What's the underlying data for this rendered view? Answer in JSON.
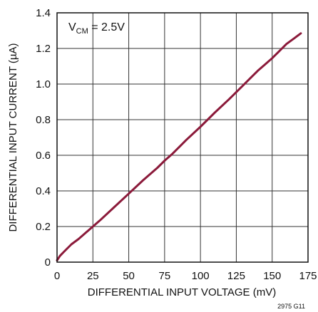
{
  "chart_data": {
    "type": "line",
    "title": "",
    "xlabel": "DIFFERENTIAL INPUT VOLTAGE (mV)",
    "ylabel": "DIFFERENTIAL INPUT CURRENT (µA)",
    "xlim": [
      0,
      175
    ],
    "ylim": [
      0,
      1.4
    ],
    "x_ticks": [
      0,
      25,
      50,
      75,
      100,
      125,
      150,
      175
    ],
    "y_ticks": [
      0,
      0.2,
      0.4,
      0.6,
      0.8,
      1.0,
      1.2,
      1.4
    ],
    "x_tick_labels": [
      "0",
      "25",
      "50",
      "75",
      "100",
      "125",
      "150",
      "175"
    ],
    "y_tick_labels": [
      "0",
      "0.2",
      "0.4",
      "0.6",
      "0.8",
      "1.0",
      "1.2",
      "1.4"
    ],
    "grid": true,
    "annotation": {
      "prefix": "V",
      "subscript": "CM",
      "suffix": " = 2.5V"
    },
    "figure_id": "2975 G11",
    "series": [
      {
        "color": "#8B1A3A",
        "x": [
          0,
          2,
          5,
          10,
          15,
          20,
          25,
          30,
          40,
          50,
          60,
          70,
          75,
          80,
          90,
          100,
          110,
          120,
          125,
          130,
          135,
          140,
          145,
          150,
          155,
          160,
          165,
          170
        ],
        "y": [
          0.01,
          0.035,
          0.06,
          0.1,
          0.13,
          0.165,
          0.2,
          0.235,
          0.31,
          0.385,
          0.46,
          0.53,
          0.57,
          0.605,
          0.685,
          0.76,
          0.84,
          0.915,
          0.955,
          0.995,
          1.035,
          1.075,
          1.11,
          1.145,
          1.185,
          1.225,
          1.255,
          1.285
        ]
      }
    ]
  }
}
